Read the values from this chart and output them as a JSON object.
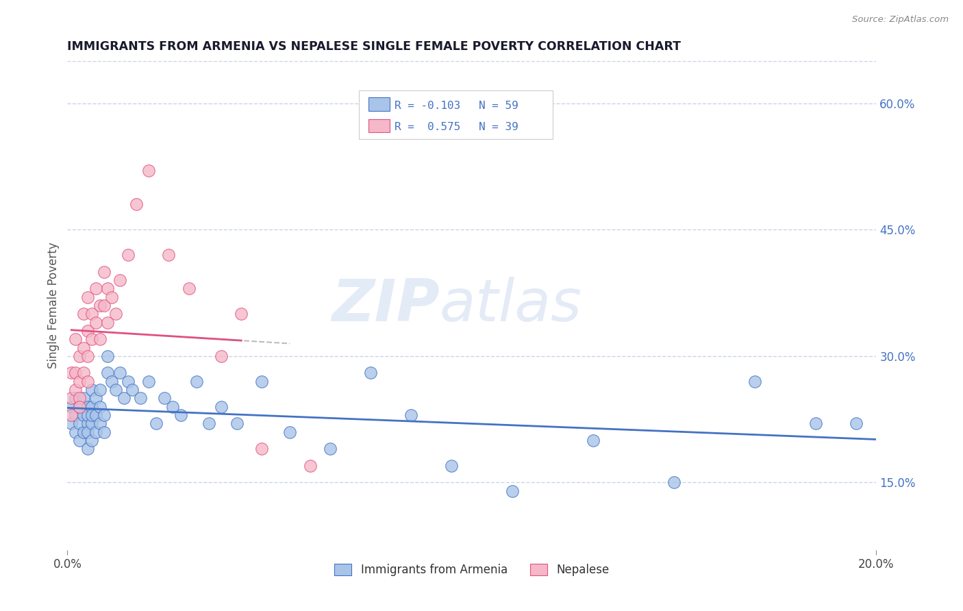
{
  "title": "IMMIGRANTS FROM ARMENIA VS NEPALESE SINGLE FEMALE POVERTY CORRELATION CHART",
  "source": "Source: ZipAtlas.com",
  "ylabel": "Single Female Poverty",
  "legend_label1": "Immigrants from Armenia",
  "legend_label2": "Nepalese",
  "legend_r1": "R = -0.103",
  "legend_n1": "N = 59",
  "legend_r2": "R =  0.575",
  "legend_n2": "N = 39",
  "xlim": [
    0.0,
    0.2
  ],
  "ylim": [
    0.07,
    0.65
  ],
  "ytick_labels_right": [
    "15.0%",
    "30.0%",
    "45.0%",
    "60.0%"
  ],
  "ytick_positions_right": [
    0.15,
    0.3,
    0.45,
    0.6
  ],
  "color_blue": "#a8c4e8",
  "color_pink": "#f5b8c8",
  "color_blue_line": "#4472c4",
  "color_pink_line": "#e05080",
  "watermark_zip": "ZIP",
  "watermark_atlas": "atlas",
  "background_color": "#ffffff",
  "grid_color": "#c8d4e8",
  "title_color": "#1a1a2e",
  "axis_label_color": "#555555",
  "right_tick_color": "#4472c4",
  "blue_scatter_x": [
    0.001,
    0.001,
    0.002,
    0.002,
    0.002,
    0.003,
    0.003,
    0.003,
    0.004,
    0.004,
    0.004,
    0.005,
    0.005,
    0.005,
    0.005,
    0.005,
    0.006,
    0.006,
    0.006,
    0.006,
    0.006,
    0.007,
    0.007,
    0.007,
    0.008,
    0.008,
    0.008,
    0.009,
    0.009,
    0.01,
    0.01,
    0.011,
    0.012,
    0.013,
    0.014,
    0.015,
    0.016,
    0.018,
    0.02,
    0.022,
    0.024,
    0.026,
    0.028,
    0.032,
    0.035,
    0.038,
    0.042,
    0.048,
    0.055,
    0.065,
    0.075,
    0.085,
    0.095,
    0.11,
    0.13,
    0.15,
    0.17,
    0.185,
    0.195
  ],
  "blue_scatter_y": [
    0.24,
    0.22,
    0.25,
    0.23,
    0.21,
    0.24,
    0.22,
    0.2,
    0.23,
    0.21,
    0.25,
    0.22,
    0.24,
    0.21,
    0.23,
    0.19,
    0.22,
    0.2,
    0.24,
    0.26,
    0.23,
    0.21,
    0.25,
    0.23,
    0.22,
    0.24,
    0.26,
    0.21,
    0.23,
    0.3,
    0.28,
    0.27,
    0.26,
    0.28,
    0.25,
    0.27,
    0.26,
    0.25,
    0.27,
    0.22,
    0.25,
    0.24,
    0.23,
    0.27,
    0.22,
    0.24,
    0.22,
    0.27,
    0.21,
    0.19,
    0.28,
    0.23,
    0.17,
    0.14,
    0.2,
    0.15,
    0.27,
    0.22,
    0.22
  ],
  "pink_scatter_x": [
    0.001,
    0.001,
    0.001,
    0.002,
    0.002,
    0.002,
    0.003,
    0.003,
    0.003,
    0.003,
    0.004,
    0.004,
    0.004,
    0.005,
    0.005,
    0.005,
    0.005,
    0.006,
    0.006,
    0.007,
    0.007,
    0.008,
    0.008,
    0.009,
    0.009,
    0.01,
    0.01,
    0.011,
    0.012,
    0.013,
    0.015,
    0.017,
    0.02,
    0.025,
    0.03,
    0.038,
    0.043,
    0.048,
    0.06
  ],
  "pink_scatter_y": [
    0.28,
    0.25,
    0.23,
    0.32,
    0.28,
    0.26,
    0.3,
    0.27,
    0.25,
    0.24,
    0.35,
    0.31,
    0.28,
    0.37,
    0.33,
    0.3,
    0.27,
    0.35,
    0.32,
    0.38,
    0.34,
    0.36,
    0.32,
    0.4,
    0.36,
    0.38,
    0.34,
    0.37,
    0.35,
    0.39,
    0.42,
    0.48,
    0.52,
    0.42,
    0.38,
    0.3,
    0.35,
    0.19,
    0.17
  ]
}
